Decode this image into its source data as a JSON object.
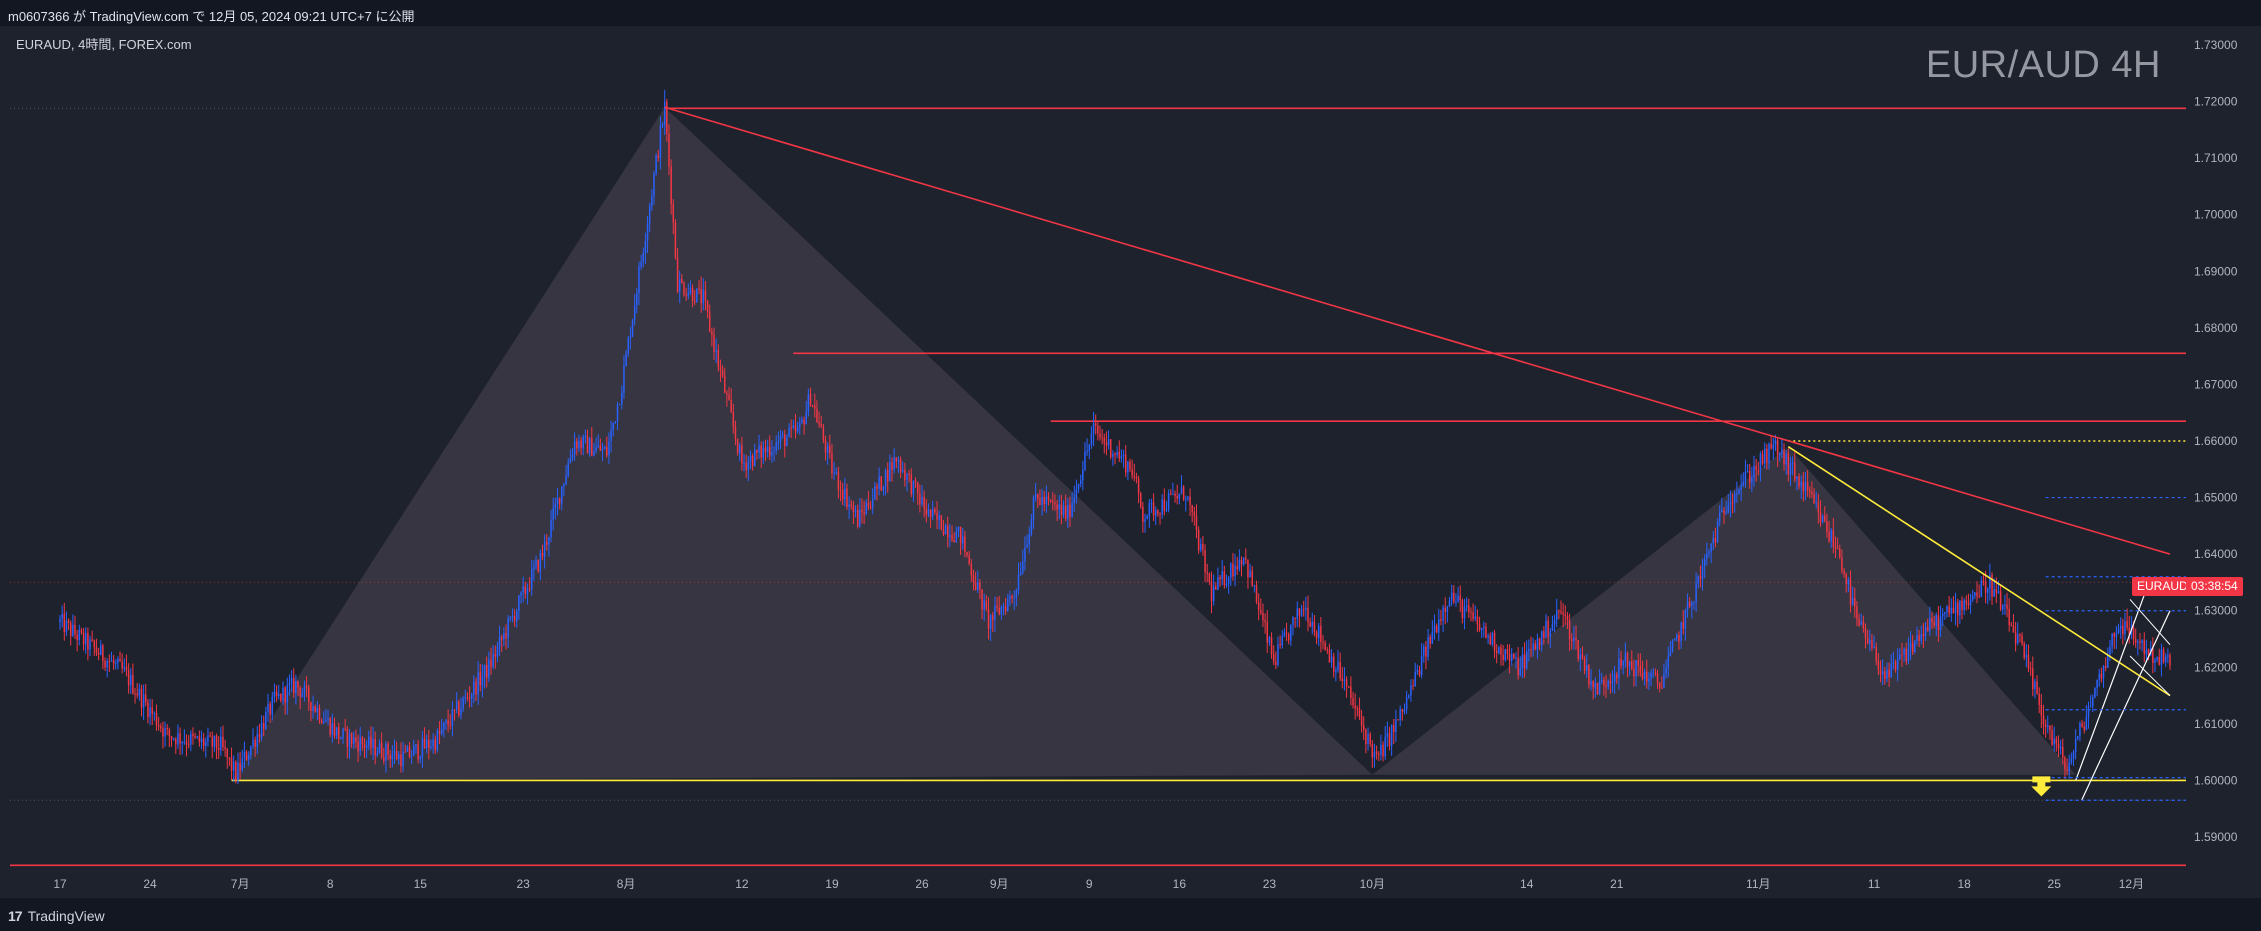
{
  "header": {
    "publish_line": "m0607366 が TradingView.com で 12月 05, 2024 09:21 UTC+7 に公開"
  },
  "symbol": {
    "info": "EURAUD, 4時間, FOREX.com",
    "watermark": "EUR/AUD 4H",
    "price_tag_symbol": "EURAUD",
    "price_tag_countdown": "03:38:54"
  },
  "footer": {
    "brand": "TradingView",
    "brand_mark": "17"
  },
  "colors": {
    "background": "#1e222d",
    "up_candle": "#2962ff",
    "down_candle": "#f23645",
    "resistance": "#f23645",
    "support": "#ffeb3b",
    "pattern_fill": "#4a4552"
  },
  "chart_data": {
    "type": "candlestick",
    "title": "EUR/AUD 4H",
    "y_axis": {
      "range": [
        1.5855,
        1.7345
      ],
      "ticks": [
        "1.73000",
        "1.72000",
        "1.71000",
        "1.70000",
        "1.69000",
        "1.68000",
        "1.67000",
        "1.66000",
        "1.65000",
        "1.64000",
        "1.63000",
        "1.62000",
        "1.61000",
        "1.60000",
        "1.59000"
      ]
    },
    "x_axis": {
      "ticks": [
        {
          "label": "17",
          "i": 0
        },
        {
          "label": "24",
          "i": 42
        },
        {
          "label": "7月",
          "i": 84
        },
        {
          "label": "8",
          "i": 126
        },
        {
          "label": "15",
          "i": 168
        },
        {
          "label": "23",
          "i": 216
        },
        {
          "label": "8月",
          "i": 264
        },
        {
          "label": "12",
          "i": 318
        },
        {
          "label": "19",
          "i": 360
        },
        {
          "label": "26",
          "i": 402
        },
        {
          "label": "9月",
          "i": 438
        },
        {
          "label": "9",
          "i": 480
        },
        {
          "label": "16",
          "i": 522
        },
        {
          "label": "23",
          "i": 564
        },
        {
          "label": "10月",
          "i": 612
        },
        {
          "label": "14",
          "i": 684
        },
        {
          "label": "21",
          "i": 726
        },
        {
          "label": "11月",
          "i": 792
        },
        {
          "label": "11",
          "i": 846
        },
        {
          "label": "18",
          "i": 888
        },
        {
          "label": "25",
          "i": 930
        },
        {
          "label": "12月",
          "i": 966
        }
      ]
    },
    "price_path": [
      [
        0,
        1.628
      ],
      [
        30,
        1.619
      ],
      [
        50,
        1.608
      ],
      [
        75,
        1.606
      ],
      [
        82,
        1.601
      ],
      [
        100,
        1.614
      ],
      [
        110,
        1.617
      ],
      [
        130,
        1.608
      ],
      [
        160,
        1.604
      ],
      [
        175,
        1.607
      ],
      [
        200,
        1.62
      ],
      [
        225,
        1.64
      ],
      [
        240,
        1.66
      ],
      [
        255,
        1.658
      ],
      [
        262,
        1.67
      ],
      [
        282,
        1.719
      ],
      [
        288,
        1.688
      ],
      [
        300,
        1.685
      ],
      [
        318,
        1.656
      ],
      [
        345,
        1.662
      ],
      [
        350,
        1.668
      ],
      [
        360,
        1.655
      ],
      [
        372,
        1.646
      ],
      [
        390,
        1.657
      ],
      [
        405,
        1.647
      ],
      [
        420,
        1.643
      ],
      [
        433,
        1.628
      ],
      [
        445,
        1.633
      ],
      [
        455,
        1.65
      ],
      [
        470,
        1.647
      ],
      [
        482,
        1.662
      ],
      [
        500,
        1.655
      ],
      [
        505,
        1.647
      ],
      [
        525,
        1.651
      ],
      [
        537,
        1.633
      ],
      [
        552,
        1.64
      ],
      [
        566,
        1.621
      ],
      [
        580,
        1.631
      ],
      [
        598,
        1.618
      ],
      [
        614,
        1.6035
      ],
      [
        626,
        1.612
      ],
      [
        640,
        1.626
      ],
      [
        648,
        1.633
      ],
      [
        662,
        1.627
      ],
      [
        680,
        1.62
      ],
      [
        700,
        1.63
      ],
      [
        716,
        1.616
      ],
      [
        730,
        1.621
      ],
      [
        746,
        1.617
      ],
      [
        762,
        1.633
      ],
      [
        778,
        1.65
      ],
      [
        800,
        1.659
      ],
      [
        816,
        1.65
      ],
      [
        830,
        1.64
      ],
      [
        838,
        1.628
      ],
      [
        852,
        1.618
      ],
      [
        868,
        1.626
      ],
      [
        886,
        1.631
      ],
      [
        900,
        1.635
      ],
      [
        914,
        1.624
      ],
      [
        926,
        1.61
      ],
      [
        936,
        1.602
      ],
      [
        950,
        1.617
      ],
      [
        960,
        1.628
      ],
      [
        976,
        1.622
      ],
      [
        984,
        1.621
      ]
    ],
    "horizontal_levels": [
      {
        "price": 1.7188,
        "from_i": 282,
        "color": "#f23645"
      },
      {
        "price": 1.6755,
        "from_i": 342,
        "color": "#f23645"
      },
      {
        "price": 1.6635,
        "from_i": 462,
        "color": "#f23645"
      },
      {
        "price": 1.6,
        "from_i": 80,
        "color": "#ffeb3b"
      },
      {
        "price": 1.66,
        "from_i": 806,
        "color": "#ffeb3b",
        "style": "dotted"
      },
      {
        "price": 1.585,
        "from_i": 0,
        "color": "#f23645"
      }
    ],
    "trend_lines": [
      {
        "from": [
          282,
          1.719
        ],
        "to": [
          984,
          1.64
        ],
        "color": "#f23645"
      },
      {
        "from": [
          806,
          1.659
        ],
        "to": [
          984,
          1.615
        ],
        "color": "#ffeb3b"
      }
    ],
    "pattern_triangles": [
      [
        [
          80,
          1.6
        ],
        [
          282,
          1.719
        ],
        [
          612,
          1.601
        ]
      ],
      [
        [
          612,
          1.601
        ],
        [
          806,
          1.659
        ],
        [
          940,
          1.601
        ]
      ]
    ],
    "current_price": 1.635
  }
}
